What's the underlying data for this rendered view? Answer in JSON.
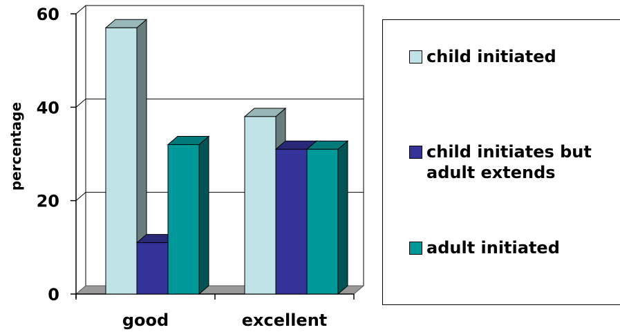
{
  "chart_data": {
    "type": "bar",
    "title": "",
    "xlabel": "",
    "ylabel": "percentage",
    "ylim": [
      0,
      60
    ],
    "yticks": [
      "0",
      "20",
      "40",
      "60"
    ],
    "categories": [
      "good",
      "excellent"
    ],
    "series": [
      {
        "name": "child initiated",
        "values": [
          57,
          38
        ],
        "color": "#BFE3E6"
      },
      {
        "name": "child initiates but adult extends",
        "values": [
          11,
          31
        ],
        "color": "#333399"
      },
      {
        "name": "adult initiated",
        "values": [
          32,
          31
        ],
        "color": "#009999"
      }
    ],
    "grid": true,
    "legend_position": "right"
  }
}
